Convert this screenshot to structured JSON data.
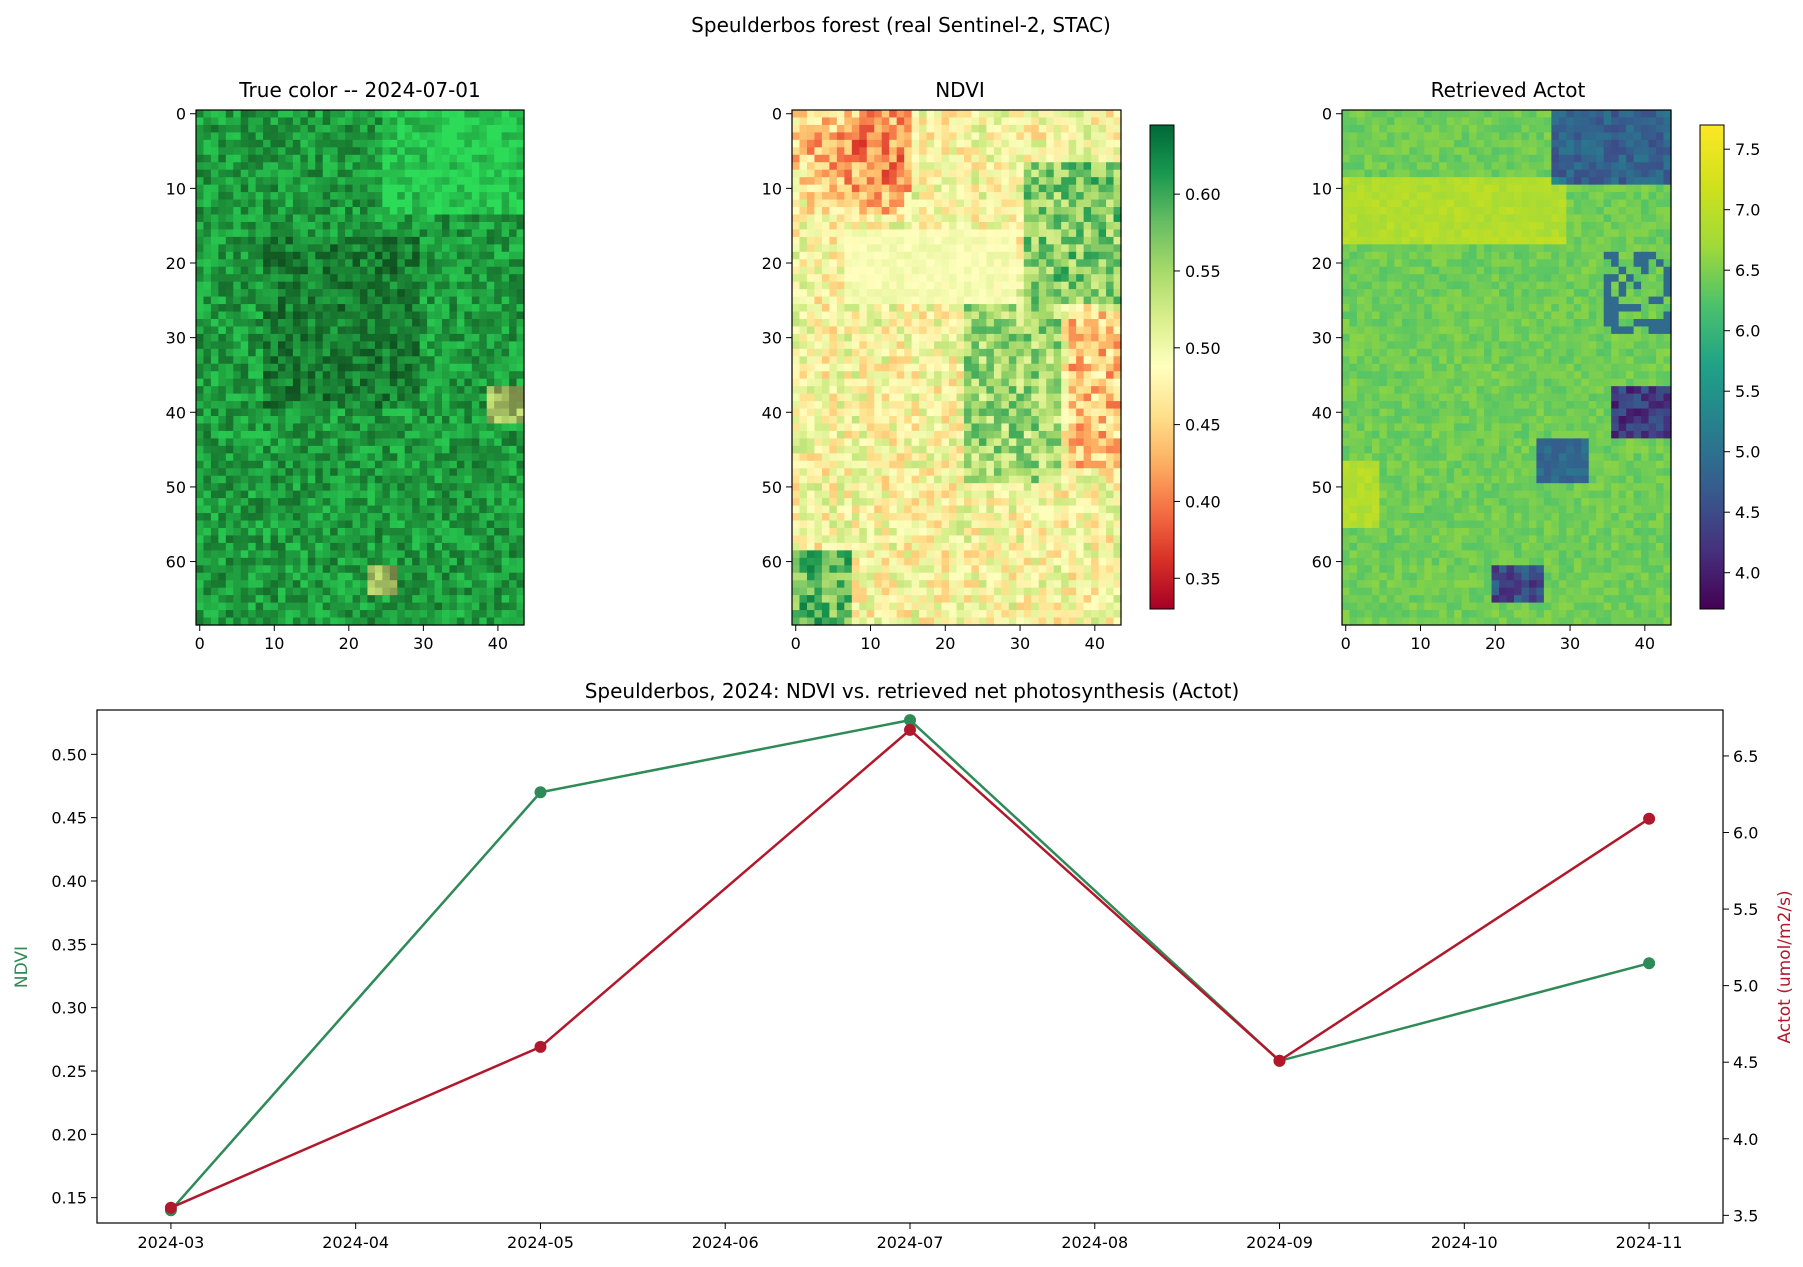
{
  "figure": {
    "suptitle": "Speulderbos forest (real Sentinel-2, STAC)"
  },
  "panels": [
    {
      "title": "True color -- 2024-07-01",
      "kind": "image",
      "image_shape": [
        69,
        44
      ],
      "x_ticks": [
        "0",
        "10",
        "20",
        "30",
        "40"
      ],
      "y_ticks": [
        "0",
        "10",
        "20",
        "30",
        "40",
        "50",
        "60"
      ]
    },
    {
      "title": "NDVI",
      "kind": "image",
      "colormap": "RdYlGn",
      "colorbar_range": [
        0.33,
        0.645
      ],
      "colorbar_ticks": [
        "0.35",
        "0.40",
        "0.45",
        "0.50",
        "0.55",
        "0.60"
      ],
      "x_ticks": [
        "0",
        "10",
        "20",
        "30",
        "40"
      ],
      "y_ticks": [
        "0",
        "10",
        "20",
        "30",
        "40",
        "50",
        "60"
      ]
    },
    {
      "title": "Retrieved Actot",
      "kind": "image",
      "colormap": "viridis",
      "colorbar_range": [
        3.7,
        7.7
      ],
      "colorbar_ticks": [
        "4.0",
        "4.5",
        "5.0",
        "5.5",
        "6.0",
        "6.5",
        "7.0",
        "7.5"
      ],
      "x_ticks": [
        "0",
        "10",
        "20",
        "30",
        "40"
      ],
      "y_ticks": [
        "0",
        "10",
        "20",
        "30",
        "40",
        "50",
        "60"
      ]
    }
  ],
  "chart_data": {
    "type": "line",
    "title": "Speulderbos, 2024: NDVI vs. retrieved net photosynthesis (Actot)",
    "x": [
      "2024-03",
      "2024-05",
      "2024-07",
      "2024-09",
      "2024-11"
    ],
    "x_ticks": [
      "2024-03",
      "2024-04",
      "2024-05",
      "2024-06",
      "2024-07",
      "2024-08",
      "2024-09",
      "2024-10",
      "2024-11"
    ],
    "ylabel_left": "NDVI",
    "ylabel_right": "Actot (umol/m2/s)",
    "ylim_left": [
      0.13,
      0.535
    ],
    "ylim_right": [
      3.45,
      6.8
    ],
    "y_ticks_left": [
      "0.15",
      "0.20",
      "0.25",
      "0.30",
      "0.35",
      "0.40",
      "0.45",
      "0.50"
    ],
    "y_ticks_right": [
      "3.5",
      "4.0",
      "4.5",
      "5.0",
      "5.5",
      "6.0",
      "6.5"
    ],
    "series": [
      {
        "name": "NDVI",
        "axis": "left",
        "color": "#2e8b57",
        "values": [
          0.14,
          0.47,
          0.527,
          0.258,
          0.335
        ]
      },
      {
        "name": "Actot",
        "axis": "right",
        "color": "#b2182b",
        "values": [
          3.55,
          4.6,
          6.67,
          4.51,
          6.09
        ]
      }
    ],
    "grid": false,
    "legend": "none"
  }
}
